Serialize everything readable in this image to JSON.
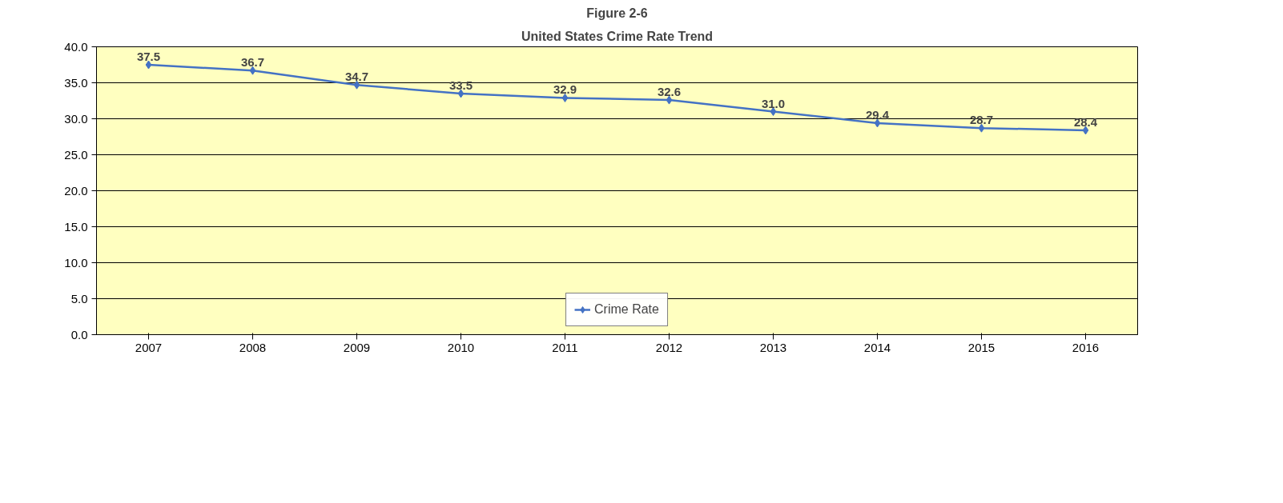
{
  "chart_data": {
    "type": "line",
    "title": "Figure 2-6",
    "subtitle": "United States Crime Rate Trend",
    "categories": [
      "2007",
      "2008",
      "2009",
      "2010",
      "2011",
      "2012",
      "2013",
      "2014",
      "2015",
      "2016"
    ],
    "series": [
      {
        "name": "Crime Rate",
        "color": "#4472c4",
        "values": [
          37.5,
          36.7,
          34.7,
          33.5,
          32.9,
          32.6,
          31.0,
          29.4,
          28.7,
          28.4
        ],
        "value_labels": [
          "37.5",
          "36.7",
          "34.7",
          "33.5",
          "32.9",
          "32.6",
          "31.0",
          "29.4",
          "28.7",
          "28.4"
        ]
      }
    ],
    "ylim": [
      0,
      40
    ],
    "yticks": [
      {
        "value": 0,
        "label": "0.0"
      },
      {
        "value": 5,
        "label": "5.0"
      },
      {
        "value": 10,
        "label": "10.0"
      },
      {
        "value": 15,
        "label": "15.0"
      },
      {
        "value": 20,
        "label": "20.0"
      },
      {
        "value": 25,
        "label": "25.0"
      },
      {
        "value": 30,
        "label": "30.0"
      },
      {
        "value": 35,
        "label": "35.0"
      },
      {
        "value": 40,
        "label": "40.0"
      }
    ],
    "grid": "y",
    "legend": "bottom",
    "marker": "diamond",
    "line_style": "solid"
  }
}
